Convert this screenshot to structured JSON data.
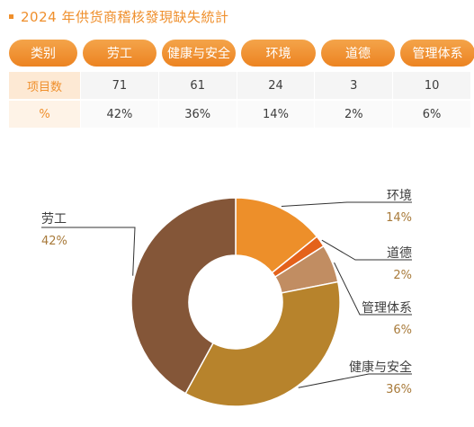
{
  "page": {
    "title": "2024 年供货商稽核發現缺失統計"
  },
  "table": {
    "header": [
      "类别",
      "劳工",
      "健康与安全",
      "环境",
      "道德",
      "管理体系"
    ],
    "rows": [
      {
        "label": "项目数",
        "values": [
          "71",
          "61",
          "24",
          "3",
          "10"
        ]
      },
      {
        "label": "%",
        "values": [
          "42%",
          "36%",
          "14%",
          "2%",
          "6%"
        ]
      }
    ]
  },
  "colors": {
    "accent": "#ef8f2c",
    "header_bg": "#ed8a29",
    "label_text": "#3d3d3d",
    "pct_text": "#a87a3a"
  },
  "chart_data": {
    "type": "pie",
    "donut": true,
    "title": "",
    "slices": [
      {
        "label": "环境",
        "value": 24,
        "percent": "14%",
        "color": "#ed8f2a"
      },
      {
        "label": "道德",
        "value": 3,
        "percent": "2%",
        "color": "#e4621b"
      },
      {
        "label": "管理体系",
        "value": 10,
        "percent": "6%",
        "color": "#c18d62"
      },
      {
        "label": "健康与安全",
        "value": 61,
        "percent": "36%",
        "color": "#b7832c"
      },
      {
        "label": "劳工",
        "value": 71,
        "percent": "42%",
        "color": "#845638"
      }
    ]
  }
}
